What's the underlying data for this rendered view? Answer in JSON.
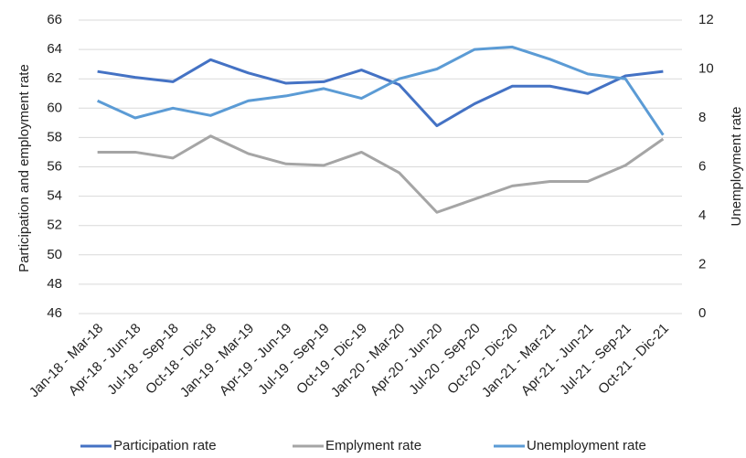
{
  "chart_data": {
    "type": "line",
    "categories": [
      "Jan-18 - Mar-18",
      "Apr-18 - Jun-18",
      "Jul-18 - Sep-18",
      "Oct-18 - Dic-18",
      "Jan-19 - Mar-19",
      "Apr-19 - Jun-19",
      "Jul-19 - Sep-19",
      "Oct-19 - Dic-19",
      "Jan-20 - Mar-20",
      "Apr-20 - Jun-20",
      "Jul-20 - Sep-20",
      "Oct-20 - Dic-20",
      "Jan-21 - Mar-21",
      "Apr-21 - Jun-21",
      "Jul-21 - Sep-21",
      "Oct-21 - Dic-21"
    ],
    "y_label": "Participation and employment rate",
    "y2_label": "Unemployment rate",
    "ylim": [
      46,
      66
    ],
    "yticks": [
      46,
      48,
      50,
      52,
      54,
      56,
      58,
      60,
      62,
      64,
      66
    ],
    "y2lim": [
      0,
      12
    ],
    "y2ticks": [
      0,
      2,
      4,
      6,
      8,
      10,
      12
    ],
    "grid": true,
    "legend": "bottom",
    "series": [
      {
        "name": "Participation rate",
        "color": "#4472c4",
        "values": [
          62.5,
          62.1,
          61.8,
          63.3,
          62.4,
          61.7,
          61.8,
          62.6,
          61.6,
          58.8,
          60.3,
          61.5,
          61.5,
          61.0,
          62.2,
          62.5
        ]
      },
      {
        "name": "Emplyment rate",
        "color": "#a5a5a5",
        "values": [
          57.0,
          57.0,
          56.6,
          58.1,
          56.9,
          56.2,
          56.1,
          57.0,
          55.6,
          52.9,
          53.8,
          54.7,
          55.0,
          55.0,
          56.1,
          57.9
        ]
      },
      {
        "name": "Unemployment rate",
        "color": "#5b9bd5",
        "axis": "y2",
        "values": [
          8.7,
          8.0,
          8.4,
          8.1,
          8.7,
          8.9,
          9.2,
          8.8,
          9.6,
          10.0,
          10.8,
          10.9,
          10.4,
          9.8,
          9.6,
          7.3
        ]
      }
    ]
  }
}
